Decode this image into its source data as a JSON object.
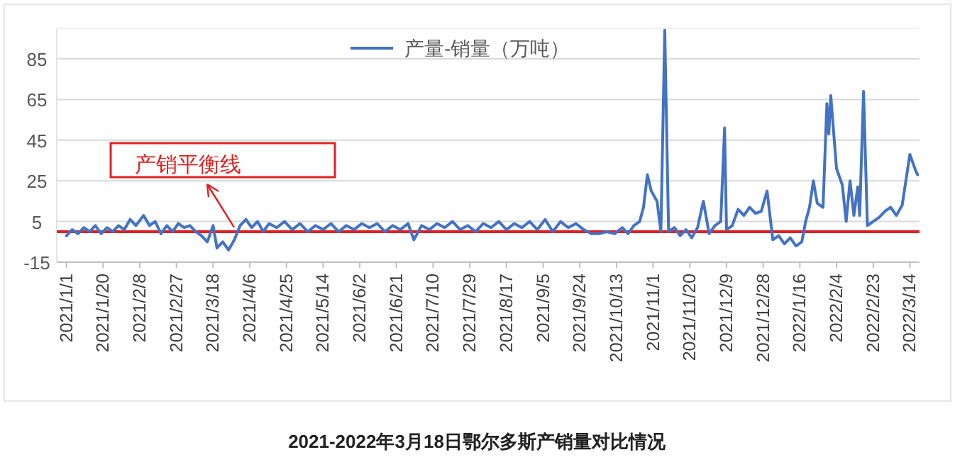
{
  "chart_data": {
    "type": "line",
    "title": "2021-2022年3月18日鄂尔多斯产销量对比情况",
    "x": [
      "2021-01-01",
      "2021-01-04",
      "2021-01-07",
      "2021-01-10",
      "2021-01-13",
      "2021-01-16",
      "2021-01-19",
      "2021-01-22",
      "2021-01-25",
      "2021-01-28",
      "2021-01-31",
      "2021-02-03",
      "2021-02-06",
      "2021-02-10",
      "2021-02-13",
      "2021-02-16",
      "2021-02-19",
      "2021-02-22",
      "2021-02-25",
      "2021-02-28",
      "2021-03-03",
      "2021-03-06",
      "2021-03-09",
      "2021-03-12",
      "2021-03-15",
      "2021-03-18",
      "2021-03-20",
      "2021-03-23",
      "2021-03-26",
      "2021-03-29",
      "2021-04-01",
      "2021-04-04",
      "2021-04-07",
      "2021-04-10",
      "2021-04-13",
      "2021-04-16",
      "2021-04-20",
      "2021-04-24",
      "2021-04-28",
      "2021-05-02",
      "2021-05-06",
      "2021-05-10",
      "2021-05-14",
      "2021-05-18",
      "2021-05-22",
      "2021-05-26",
      "2021-05-30",
      "2021-06-03",
      "2021-06-07",
      "2021-06-11",
      "2021-06-15",
      "2021-06-19",
      "2021-06-23",
      "2021-06-27",
      "2021-06-30",
      "2021-07-04",
      "2021-07-08",
      "2021-07-12",
      "2021-07-16",
      "2021-07-20",
      "2021-07-24",
      "2021-07-28",
      "2021-08-01",
      "2021-08-05",
      "2021-08-09",
      "2021-08-13",
      "2021-08-17",
      "2021-08-21",
      "2021-08-25",
      "2021-08-29",
      "2021-09-02",
      "2021-09-06",
      "2021-09-10",
      "2021-09-14",
      "2021-09-18",
      "2021-09-22",
      "2021-09-26",
      "2021-09-30",
      "2021-10-04",
      "2021-10-08",
      "2021-10-12",
      "2021-10-16",
      "2021-10-19",
      "2021-10-22",
      "2021-10-25",
      "2021-10-27",
      "2021-10-29",
      "2021-10-31",
      "2021-11-03",
      "2021-11-05",
      "2021-11-07",
      "2021-11-09",
      "2021-11-12",
      "2021-11-15",
      "2021-11-18",
      "2021-11-21",
      "2021-11-24",
      "2021-11-27",
      "2021-11-30",
      "2021-12-03",
      "2021-12-06",
      "2021-12-08",
      "2021-12-09",
      "2021-12-12",
      "2021-12-15",
      "2021-12-18",
      "2021-12-21",
      "2021-12-24",
      "2021-12-27",
      "2021-12-30",
      "2022-01-02",
      "2022-01-05",
      "2022-01-08",
      "2022-01-11",
      "2022-01-14",
      "2022-01-17",
      "2022-01-19",
      "2022-01-21",
      "2022-01-23",
      "2022-01-25",
      "2022-01-28",
      "2022-01-30",
      "2022-01-31",
      "2022-02-01",
      "2022-02-04",
      "2022-02-07",
      "2022-02-09",
      "2022-02-11",
      "2022-02-13",
      "2022-02-15",
      "2022-02-16",
      "2022-02-18",
      "2022-02-20",
      "2022-02-23",
      "2022-02-26",
      "2022-03-01",
      "2022-03-04",
      "2022-03-07",
      "2022-03-10",
      "2022-03-14",
      "2022-03-17",
      "2022-03-18"
    ],
    "series": [
      {
        "name": "产量-销量（万吨）",
        "color": "#4472c4",
        "values": [
          -2,
          1,
          -1,
          2,
          0,
          3,
          -1,
          2,
          0,
          3,
          1,
          6,
          3,
          8,
          3,
          5,
          -1,
          3,
          0,
          4,
          2,
          3,
          0,
          -2,
          -5,
          3,
          -8,
          -5,
          -9,
          -4,
          3,
          6,
          2,
          5,
          0,
          4,
          2,
          5,
          1,
          4,
          0,
          3,
          1,
          4,
          0,
          3,
          1,
          4,
          2,
          4,
          0,
          3,
          1,
          4,
          -4,
          3,
          1,
          4,
          2,
          5,
          1,
          3,
          0,
          4,
          2,
          5,
          1,
          4,
          2,
          5,
          1,
          6,
          0,
          5,
          2,
          4,
          1,
          -1,
          -1,
          0,
          -1,
          2,
          -1,
          3,
          5,
          12,
          28,
          20,
          15,
          0,
          99,
          0,
          2,
          -2,
          1,
          -3,
          2,
          15,
          -1,
          3,
          5,
          51,
          1,
          3,
          11,
          8,
          12,
          9,
          10,
          20,
          -4,
          -2,
          -6,
          -3,
          -7,
          -5,
          5,
          12,
          25,
          14,
          12,
          63,
          48,
          67,
          31,
          23,
          5,
          25,
          8,
          22,
          8,
          69,
          3,
          5,
          7,
          10,
          12,
          8,
          13,
          38,
          30,
          28
        ]
      }
    ],
    "xlim": [
      "2020-12-27",
      "2022-03-19"
    ],
    "xticks": [
      {
        "value": "2021-01-01",
        "label": "2021/1/1"
      },
      {
        "value": "2021-01-20",
        "label": "2021/1/20"
      },
      {
        "value": "2021-02-08",
        "label": "2021/2/8"
      },
      {
        "value": "2021-02-27",
        "label": "2021/2/27"
      },
      {
        "value": "2021-03-18",
        "label": "2021/3/18"
      },
      {
        "value": "2021-04-06",
        "label": "2021/4/6"
      },
      {
        "value": "2021-04-25",
        "label": "2021/4/25"
      },
      {
        "value": "2021-05-14",
        "label": "2021/5/14"
      },
      {
        "value": "2021-06-02",
        "label": "2021/6/2"
      },
      {
        "value": "2021-06-21",
        "label": "2021/6/21"
      },
      {
        "value": "2021-07-10",
        "label": "2021/7/10"
      },
      {
        "value": "2021-07-29",
        "label": "2021/7/29"
      },
      {
        "value": "2021-08-17",
        "label": "2021/8/17"
      },
      {
        "value": "2021-09-05",
        "label": "2021/9/5"
      },
      {
        "value": "2021-09-24",
        "label": "2021/9/24"
      },
      {
        "value": "2021-10-13",
        "label": "2021/10/13"
      },
      {
        "value": "2021-11-01",
        "label": "2021/11/1"
      },
      {
        "value": "2021-11-20",
        "label": "2021/11/20"
      },
      {
        "value": "2021-12-09",
        "label": "2021/12/9"
      },
      {
        "value": "2021-12-28",
        "label": "2021/12/28"
      },
      {
        "value": "2022-01-16",
        "label": "2022/1/16"
      },
      {
        "value": "2022-02-04",
        "label": "2022/2/4"
      },
      {
        "value": "2022-02-23",
        "label": "2022/2/23"
      },
      {
        "value": "2022-03-14",
        "label": "2022/3/14"
      }
    ],
    "ylim": [
      -15,
      100
    ],
    "yticks": [
      -15,
      5,
      25,
      45,
      65,
      85
    ],
    "grid": "y",
    "legend": "top",
    "ref_lines": [
      {
        "axis": "y",
        "value": 0,
        "label": "产销平衡线",
        "color": "#e02020"
      }
    ]
  }
}
